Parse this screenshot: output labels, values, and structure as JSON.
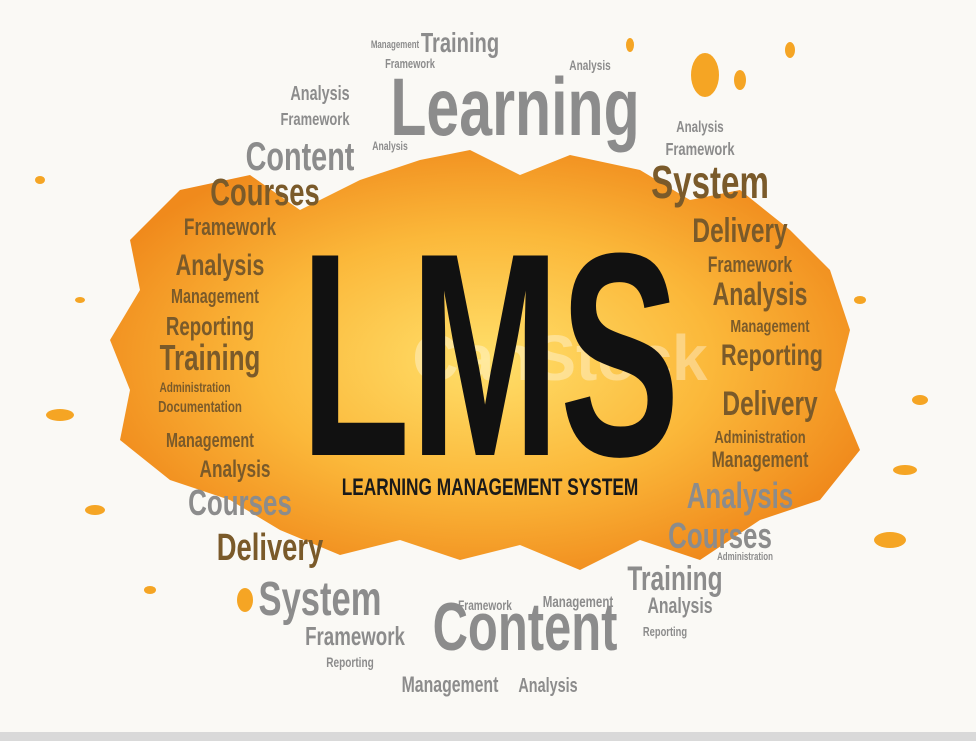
{
  "title": "LMS",
  "subtitle": "LEARNING MANAGEMENT SYSTEM",
  "watermark": "CanStock",
  "cloud_words": [
    "Training",
    "Learning",
    "Management",
    "Framework",
    "Analysis",
    "Framework",
    "Content",
    "Analysis",
    "Courses",
    "Framework",
    "Analysis",
    "Management",
    "Reporting",
    "Training",
    "Administration",
    "Documentation",
    "Management",
    "Analysis",
    "Courses",
    "Delivery",
    "System",
    "Framework",
    "Content",
    "Reporting",
    "Management",
    "Analysis",
    "Framework",
    "Management",
    "Training",
    "Analysis",
    "Reporting",
    "Courses",
    "Administration",
    "Analysis",
    "Management",
    "Administration",
    "Delivery",
    "Reporting",
    "Management",
    "Analysis",
    "Framework",
    "Delivery",
    "System",
    "Framework",
    "Analysis",
    "Analysis"
  ]
}
